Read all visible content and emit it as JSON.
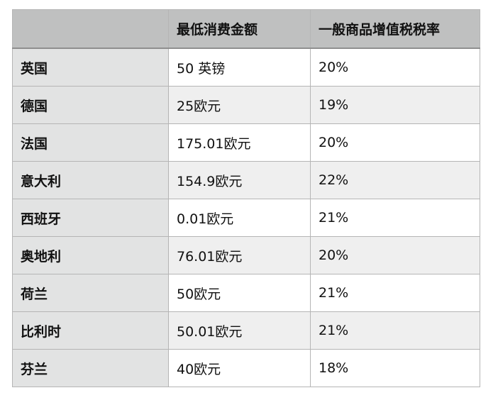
{
  "table": {
    "headers": [
      "",
      "最低消费金额",
      "一般商品增值税税率"
    ],
    "rows": [
      [
        "英国",
        "50 英镑",
        "20%"
      ],
      [
        "德国",
        "25欧元",
        "19%"
      ],
      [
        "法国",
        "175.01欧元",
        "20%"
      ],
      [
        "意大利",
        "154.9欧元",
        "22%"
      ],
      [
        "西班牙",
        "0.01欧元",
        "21%"
      ],
      [
        "奥地利",
        "76.01欧元",
        "20%"
      ],
      [
        "荷兰",
        "50欧元",
        "21%"
      ],
      [
        "比利时",
        "50.01欧元",
        "21%"
      ],
      [
        "芬兰",
        "40欧元",
        "18%"
      ]
    ]
  }
}
